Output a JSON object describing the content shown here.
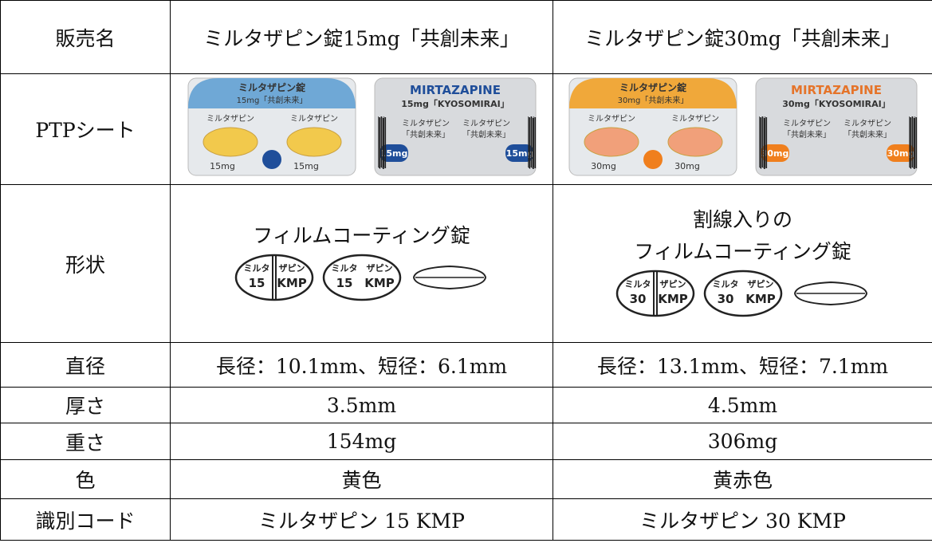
{
  "table": {
    "rows": [
      {
        "label": "販売名",
        "cells": [
          "ミルタザピン錠15mg「共創未来」",
          "ミルタザピン錠30mg「共創未来」"
        ]
      },
      {
        "label": "PTPシート",
        "cells": [
          {
            "front_name": "ミルタザピン錠",
            "front_strength": "15mg「共創未来」",
            "blister": "ミルタザピン",
            "dose": "15mg",
            "back_name": "MIRTAZAPINE",
            "back_strength": "15mg「KYOSOMIRAI」",
            "back_label": "「共創未来」"
          },
          {
            "front_name": "ミルタザピン錠",
            "front_strength": "30mg「共創未来」",
            "blister": "ミルタザピン",
            "dose": "30mg",
            "back_name": "MIRTAZAPINE",
            "back_strength": "30mg「KYOSOMIRAI」",
            "back_label": "「共創未来」"
          }
        ]
      },
      {
        "label": "形状",
        "cells": [
          {
            "caption": [
              "フィルムコーティング錠"
            ],
            "imprint": [
              "ミルタ",
              "15",
              "ザピン",
              "KMP"
            ]
          },
          {
            "caption": [
              "割線入りの",
              "フィルムコーティング錠"
            ],
            "imprint": [
              "ミルタ",
              "30",
              "ザピン",
              "KMP"
            ]
          }
        ]
      },
      {
        "label": "直径",
        "cells": [
          "長径：10.1mm、短径：6.1mm",
          "長径：13.1mm、短径：7.1mm"
        ]
      },
      {
        "label": "厚さ",
        "cells": [
          "3.5mm",
          "4.5mm"
        ]
      },
      {
        "label": "重さ",
        "cells": [
          "154mg",
          "306mg"
        ]
      },
      {
        "label": "色",
        "cells": [
          "黄色",
          "黄赤色"
        ]
      },
      {
        "label": "識別コード",
        "cells": [
          "ミルタザピン 15 KMP",
          "ミルタザピン 30 KMP"
        ]
      }
    ]
  }
}
